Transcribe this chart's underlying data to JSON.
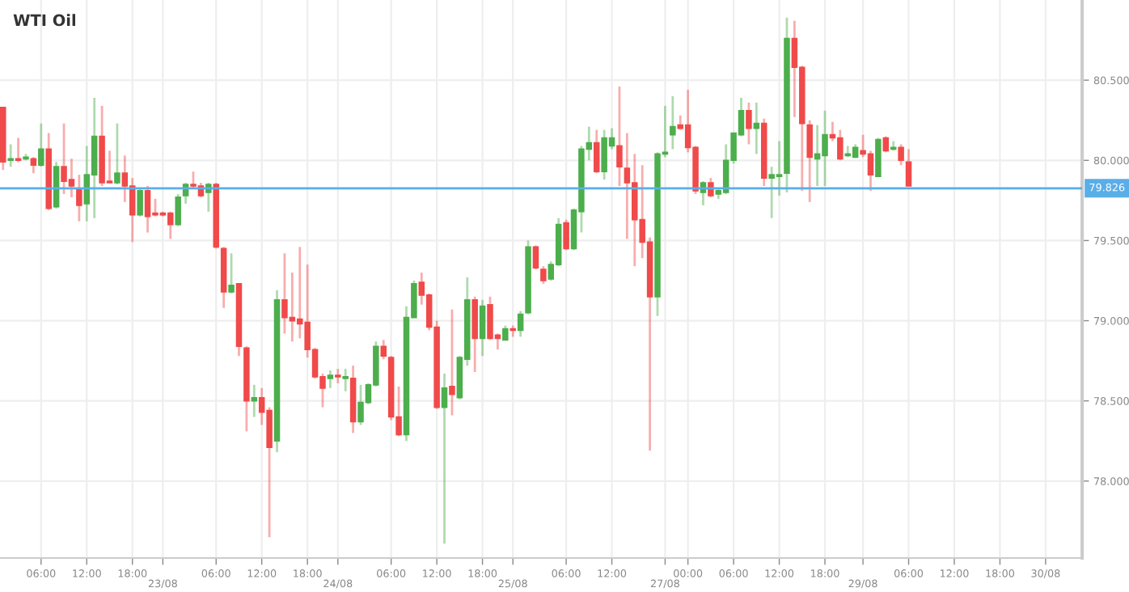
{
  "chart_data": {
    "type": "candlestick",
    "title": "WTI Oil",
    "categories": [
      null,
      null,
      null,
      null,
      null,
      "06:00",
      null,
      null,
      null,
      null,
      null,
      "12:00",
      null,
      null,
      null,
      null,
      null,
      "18:00",
      null,
      null,
      null,
      "23/08",
      null,
      null,
      null,
      null,
      null,
      null,
      "06:00",
      null,
      null,
      null,
      null,
      null,
      "12:00",
      null,
      null,
      null,
      null,
      null,
      "18:00",
      null,
      null,
      null,
      "24/08",
      null,
      null,
      null,
      null,
      null,
      null,
      "06:00",
      null,
      null,
      null,
      null,
      null,
      "12:00",
      null,
      null,
      null,
      null,
      null,
      "18:00",
      null,
      null,
      null,
      "25/08",
      null,
      null,
      null,
      null,
      null,
      null,
      "06:00",
      null,
      null,
      null,
      null,
      null,
      "12:00",
      null,
      null,
      null,
      null,
      null,
      null,
      "27/08",
      null,
      null,
      "00:00",
      null,
      null,
      null,
      null,
      null,
      "06:00",
      null,
      null,
      null,
      null,
      null,
      "12:00",
      null,
      null,
      null,
      null,
      null,
      "18:00",
      null,
      null,
      null,
      null,
      "29/08",
      null,
      null,
      null,
      null,
      null,
      "06:00",
      null,
      null,
      null,
      null,
      null,
      "12:00",
      null,
      null,
      null,
      null,
      null,
      "18:00",
      null,
      null,
      null,
      null,
      null,
      "30/08",
      null,
      null,
      null,
      null
    ],
    "ohlc": [
      [
        80.33,
        80.33,
        79.94,
        79.99
      ],
      [
        80.0,
        80.1,
        79.96,
        80.01
      ],
      [
        80.01,
        80.14,
        79.99,
        80.0
      ],
      [
        80.01,
        80.04,
        80.0,
        80.02
      ],
      [
        80.01,
        80.02,
        79.92,
        79.97
      ],
      [
        79.97,
        80.23,
        79.96,
        80.07
      ],
      [
        80.07,
        80.17,
        79.69,
        79.7
      ],
      [
        79.71,
        79.99,
        79.7,
        79.96
      ],
      [
        79.96,
        80.23,
        79.79,
        79.87
      ],
      [
        79.88,
        80.01,
        79.77,
        79.84
      ],
      [
        79.82,
        79.91,
        79.62,
        79.72
      ],
      [
        79.73,
        80.09,
        79.62,
        79.91
      ],
      [
        79.91,
        80.39,
        79.64,
        80.15
      ],
      [
        80.15,
        80.34,
        79.84,
        79.86
      ],
      [
        79.87,
        80.06,
        79.86,
        79.86
      ],
      [
        79.86,
        80.23,
        79.85,
        79.92
      ],
      [
        79.92,
        80.03,
        79.74,
        79.84
      ],
      [
        79.84,
        79.89,
        79.49,
        79.66
      ],
      [
        79.66,
        79.82,
        79.65,
        79.81
      ],
      [
        79.81,
        79.84,
        79.55,
        79.65
      ],
      [
        79.67,
        79.76,
        79.65,
        79.66
      ],
      [
        79.67,
        79.68,
        79.65,
        79.66
      ],
      [
        79.67,
        79.68,
        79.51,
        79.6
      ],
      [
        79.6,
        79.79,
        79.59,
        79.77
      ],
      [
        79.78,
        79.86,
        79.73,
        79.85
      ],
      [
        79.85,
        79.93,
        79.82,
        79.84
      ],
      [
        79.84,
        79.86,
        79.77,
        79.78
      ],
      [
        79.8,
        79.86,
        79.68,
        79.85
      ],
      [
        79.85,
        79.86,
        79.45,
        79.46
      ],
      [
        79.45,
        79.46,
        79.08,
        79.18
      ],
      [
        79.18,
        79.42,
        79.17,
        79.22
      ],
      [
        79.23,
        79.23,
        78.78,
        78.84
      ],
      [
        78.83,
        78.84,
        78.31,
        78.5
      ],
      [
        78.5,
        78.6,
        78.4,
        78.52
      ],
      [
        78.52,
        78.58,
        78.35,
        78.43
      ],
      [
        78.44,
        78.46,
        77.65,
        78.21
      ],
      [
        78.25,
        79.19,
        78.18,
        79.13
      ],
      [
        79.13,
        79.42,
        78.92,
        79.02
      ],
      [
        79.02,
        79.3,
        78.87,
        79.0
      ],
      [
        79.01,
        79.46,
        78.89,
        78.98
      ],
      [
        78.99,
        79.35,
        78.77,
        78.82
      ],
      [
        78.82,
        78.83,
        78.64,
        78.65
      ],
      [
        78.65,
        78.67,
        78.46,
        78.58
      ],
      [
        78.64,
        78.69,
        78.58,
        78.66
      ],
      [
        78.66,
        78.7,
        78.61,
        78.65
      ],
      [
        78.64,
        78.7,
        78.56,
        78.65
      ],
      [
        78.64,
        78.72,
        78.3,
        78.37
      ],
      [
        78.37,
        78.6,
        78.35,
        78.49
      ],
      [
        78.49,
        78.61,
        78.48,
        78.6
      ],
      [
        78.6,
        78.87,
        78.59,
        78.84
      ],
      [
        78.84,
        78.88,
        78.76,
        78.78
      ],
      [
        78.77,
        78.78,
        78.38,
        78.4
      ],
      [
        78.4,
        78.59,
        78.28,
        78.29
      ],
      [
        78.29,
        79.09,
        78.25,
        79.02
      ],
      [
        79.02,
        79.25,
        79.02,
        79.23
      ],
      [
        79.24,
        79.3,
        79.1,
        79.16
      ],
      [
        79.16,
        79.17,
        78.94,
        78.96
      ],
      [
        78.96,
        79.0,
        78.45,
        78.46
      ],
      [
        78.46,
        78.67,
        77.61,
        78.58
      ],
      [
        78.59,
        79.07,
        78.41,
        78.54
      ],
      [
        78.52,
        78.78,
        78.51,
        78.77
      ],
      [
        78.76,
        79.27,
        78.72,
        79.13
      ],
      [
        79.13,
        79.15,
        78.68,
        78.89
      ],
      [
        78.89,
        79.13,
        78.78,
        79.09
      ],
      [
        79.1,
        79.15,
        78.88,
        78.89
      ],
      [
        78.91,
        78.92,
        78.82,
        78.89
      ],
      [
        78.88,
        78.97,
        78.88,
        78.95
      ],
      [
        78.95,
        78.97,
        78.9,
        78.94
      ],
      [
        78.94,
        79.06,
        78.9,
        79.04
      ],
      [
        79.05,
        79.5,
        79.04,
        79.46
      ],
      [
        79.46,
        79.47,
        79.32,
        79.33
      ],
      [
        79.32,
        79.34,
        79.23,
        79.25
      ],
      [
        79.26,
        79.37,
        79.25,
        79.35
      ],
      [
        79.35,
        79.64,
        79.34,
        79.6
      ],
      [
        79.61,
        79.63,
        79.44,
        79.45
      ],
      [
        79.45,
        79.7,
        79.44,
        79.69
      ],
      [
        79.68,
        80.09,
        79.55,
        80.07
      ],
      [
        80.07,
        80.21,
        80.0,
        80.11
      ],
      [
        80.11,
        80.19,
        79.92,
        79.93
      ],
      [
        79.93,
        80.19,
        79.88,
        80.14
      ],
      [
        80.09,
        80.2,
        80.07,
        80.14
      ],
      [
        80.09,
        80.46,
        79.84,
        79.96
      ],
      [
        79.95,
        80.17,
        79.51,
        79.86
      ],
      [
        79.86,
        80.04,
        79.34,
        79.63
      ],
      [
        79.63,
        79.97,
        79.39,
        79.49
      ],
      [
        79.49,
        79.52,
        78.19,
        79.15
      ],
      [
        79.15,
        80.05,
        79.03,
        80.04
      ],
      [
        80.04,
        80.34,
        80.02,
        80.05
      ],
      [
        80.16,
        80.4,
        80.07,
        80.21
      ],
      [
        80.22,
        80.28,
        80.19,
        80.2
      ],
      [
        80.22,
        80.44,
        80.05,
        80.08
      ],
      [
        80.08,
        80.09,
        79.79,
        79.81
      ],
      [
        79.8,
        79.87,
        79.72,
        79.86
      ],
      [
        79.86,
        79.89,
        79.77,
        79.78
      ],
      [
        79.79,
        79.82,
        79.76,
        79.81
      ],
      [
        79.8,
        80.1,
        79.79,
        80.0
      ],
      [
        80.0,
        80.17,
        79.98,
        80.17
      ],
      [
        80.16,
        80.39,
        80.15,
        80.31
      ],
      [
        80.31,
        80.36,
        80.1,
        80.2
      ],
      [
        80.2,
        80.36,
        80.04,
        80.23
      ],
      [
        80.23,
        80.26,
        79.84,
        79.89
      ],
      [
        79.89,
        79.96,
        79.64,
        79.91
      ],
      [
        79.9,
        80.12,
        79.78,
        79.91
      ],
      [
        79.92,
        80.89,
        79.8,
        80.76
      ],
      [
        80.76,
        80.87,
        80.27,
        80.58
      ],
      [
        80.58,
        80.59,
        79.81,
        80.23
      ],
      [
        80.22,
        80.25,
        79.74,
        80.02
      ],
      [
        80.01,
        80.22,
        79.84,
        80.04
      ],
      [
        80.03,
        80.31,
        79.84,
        80.16
      ],
      [
        80.16,
        80.24,
        80.12,
        80.14
      ],
      [
        80.14,
        80.19,
        80.0,
        80.01
      ],
      [
        80.03,
        80.09,
        80.02,
        80.04
      ],
      [
        80.02,
        80.1,
        80.02,
        80.08
      ],
      [
        80.06,
        80.16,
        80.02,
        80.04
      ],
      [
        80.04,
        80.06,
        79.81,
        79.91
      ],
      [
        79.9,
        80.14,
        79.9,
        80.13
      ],
      [
        80.14,
        80.15,
        80.05,
        80.06
      ],
      [
        80.07,
        80.12,
        80.06,
        80.08
      ],
      [
        80.08,
        80.1,
        79.97,
        80.0
      ],
      [
        79.99,
        80.07,
        79.84,
        79.84
      ],
      null,
      null,
      null,
      null,
      null,
      null,
      null,
      null,
      null,
      null,
      null,
      null,
      null,
      null,
      null,
      null,
      null,
      null,
      null,
      null,
      null,
      null
    ],
    "colors": [
      "#f04a4a",
      "#4cae4c",
      "#f04a4a",
      "#4cae4c",
      "#f04a4a",
      "#4cae4c",
      "#f04a4a",
      "#4cae4c",
      "#f04a4a",
      "#f04a4a",
      "#f04a4a",
      "#4cae4c",
      "#4cae4c",
      "#f04a4a",
      "#f04a4a",
      "#4cae4c",
      "#f04a4a",
      "#f04a4a",
      "#4cae4c",
      "#f04a4a",
      "#f04a4a",
      "#f04a4a",
      "#f04a4a",
      "#4cae4c",
      "#4cae4c",
      "#f04a4a",
      "#f04a4a",
      "#4cae4c",
      "#f04a4a",
      "#f04a4a",
      "#4cae4c",
      "#f04a4a",
      "#f04a4a",
      "#4cae4c",
      "#f04a4a",
      "#f04a4a",
      "#4cae4c",
      "#f04a4a",
      "#f04a4a",
      "#f04a4a",
      "#f04a4a",
      "#f04a4a",
      "#f04a4a",
      "#4cae4c",
      "#f04a4a",
      "#4cae4c",
      "#f04a4a",
      "#4cae4c",
      "#4cae4c",
      "#4cae4c",
      "#f04a4a",
      "#f04a4a",
      "#f04a4a",
      "#4cae4c",
      "#4cae4c",
      "#f04a4a",
      "#f04a4a",
      "#f04a4a",
      "#4cae4c",
      "#f04a4a",
      "#4cae4c",
      "#4cae4c",
      "#f04a4a",
      "#4cae4c",
      "#f04a4a",
      "#f04a4a",
      "#4cae4c",
      "#f04a4a",
      "#4cae4c",
      "#4cae4c",
      "#f04a4a",
      "#f04a4a",
      "#4cae4c",
      "#4cae4c",
      "#f04a4a",
      "#4cae4c",
      "#4cae4c",
      "#4cae4c",
      "#f04a4a",
      "#4cae4c",
      "#4cae4c",
      "#f04a4a",
      "#f04a4a",
      "#f04a4a",
      "#f04a4a",
      "#f04a4a",
      "#4cae4c",
      "#4cae4c",
      "#4cae4c",
      "#f04a4a",
      "#f04a4a",
      "#f04a4a",
      "#4cae4c",
      "#f04a4a",
      "#4cae4c",
      "#4cae4c",
      "#4cae4c",
      "#4cae4c",
      "#f04a4a",
      "#4cae4c",
      "#f04a4a",
      "#4cae4c",
      "#4cae4c",
      "#4cae4c",
      "#f04a4a",
      "#f04a4a",
      "#f04a4a",
      "#4cae4c",
      "#4cae4c",
      "#f04a4a",
      "#f04a4a",
      "#4cae4c",
      "#4cae4c",
      "#f04a4a",
      "#f04a4a",
      "#4cae4c",
      "#f04a4a",
      "#4cae4c",
      "#f04a4a",
      "#f04a4a",
      null,
      null,
      null,
      null,
      null,
      null,
      null,
      null,
      null,
      null,
      null,
      null,
      null,
      null,
      null,
      null,
      null,
      null,
      null,
      null,
      null,
      null
    ],
    "ylim": [
      77.52,
      81.0
    ],
    "yticks": [
      {
        "value": 78.0,
        "label": "78.000"
      },
      {
        "value": 78.5,
        "label": "78.500"
      },
      {
        "value": 79.0,
        "label": "79.000"
      },
      {
        "value": 79.5,
        "label": "79.500"
      },
      {
        "value": 80.0,
        "label": "80.000"
      },
      {
        "value": 80.5,
        "label": "80.500"
      }
    ],
    "ref_lines": [
      {
        "axis": "y",
        "value": 79.826,
        "label": "79.826",
        "color": "#5aaee8",
        "line_style": "solid"
      }
    ],
    "grid": true,
    "legend": false
  }
}
